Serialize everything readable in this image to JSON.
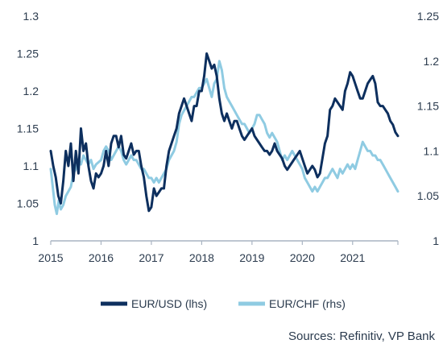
{
  "chart_data": {
    "type": "line",
    "title": "",
    "xlabel": "",
    "ylabel": "",
    "x_ticks": [
      "2015",
      "2016",
      "2017",
      "2018",
      "2019",
      "2020",
      "2021"
    ],
    "x_range": [
      2015.0,
      2021.9
    ],
    "y_left_ticks": [
      "1",
      "1.05",
      "1.1",
      "1.15",
      "1.2",
      "1.25",
      "1.3"
    ],
    "y_left_range": [
      1.0,
      1.3
    ],
    "y_right_ticks": [
      "1",
      "1.05",
      "1.1",
      "1.15",
      "1.2",
      "1.25"
    ],
    "y_right_range": [
      1.0,
      1.25
    ],
    "grid": false,
    "legend_position": "bottom-center",
    "source": "Sources: Refinitiv, VP Bank",
    "series": [
      {
        "name": "EUR/USD (lhs)",
        "axis": "left",
        "color": "#0d2f5e",
        "points": [
          [
            2015.0,
            1.12
          ],
          [
            2015.05,
            1.1
          ],
          [
            2015.1,
            1.085
          ],
          [
            2015.15,
            1.06
          ],
          [
            2015.2,
            1.05
          ],
          [
            2015.25,
            1.08
          ],
          [
            2015.3,
            1.12
          ],
          [
            2015.35,
            1.1
          ],
          [
            2015.4,
            1.13
          ],
          [
            2015.45,
            1.08
          ],
          [
            2015.5,
            1.12
          ],
          [
            2015.55,
            1.09
          ],
          [
            2015.6,
            1.15
          ],
          [
            2015.65,
            1.12
          ],
          [
            2015.7,
            1.13
          ],
          [
            2015.75,
            1.1
          ],
          [
            2015.8,
            1.08
          ],
          [
            2015.85,
            1.07
          ],
          [
            2015.9,
            1.09
          ],
          [
            2015.95,
            1.085
          ],
          [
            2016.0,
            1.09
          ],
          [
            2016.05,
            1.1
          ],
          [
            2016.1,
            1.12
          ],
          [
            2016.15,
            1.1
          ],
          [
            2016.2,
            1.13
          ],
          [
            2016.25,
            1.14
          ],
          [
            2016.3,
            1.14
          ],
          [
            2016.35,
            1.125
          ],
          [
            2016.4,
            1.14
          ],
          [
            2016.45,
            1.115
          ],
          [
            2016.5,
            1.11
          ],
          [
            2016.55,
            1.12
          ],
          [
            2016.6,
            1.13
          ],
          [
            2016.65,
            1.115
          ],
          [
            2016.7,
            1.12
          ],
          [
            2016.75,
            1.12
          ],
          [
            2016.8,
            1.1
          ],
          [
            2016.85,
            1.085
          ],
          [
            2016.9,
            1.06
          ],
          [
            2016.95,
            1.04
          ],
          [
            2017.0,
            1.045
          ],
          [
            2017.05,
            1.07
          ],
          [
            2017.1,
            1.06
          ],
          [
            2017.15,
            1.065
          ],
          [
            2017.2,
            1.07
          ],
          [
            2017.25,
            1.07
          ],
          [
            2017.3,
            1.1
          ],
          [
            2017.35,
            1.12
          ],
          [
            2017.4,
            1.13
          ],
          [
            2017.45,
            1.14
          ],
          [
            2017.5,
            1.15
          ],
          [
            2017.55,
            1.17
          ],
          [
            2017.6,
            1.18
          ],
          [
            2017.65,
            1.19
          ],
          [
            2017.7,
            1.18
          ],
          [
            2017.75,
            1.17
          ],
          [
            2017.8,
            1.16
          ],
          [
            2017.85,
            1.18
          ],
          [
            2017.9,
            1.18
          ],
          [
            2017.95,
            1.2
          ],
          [
            2018.0,
            1.2
          ],
          [
            2018.05,
            1.22
          ],
          [
            2018.1,
            1.25
          ],
          [
            2018.15,
            1.24
          ],
          [
            2018.2,
            1.23
          ],
          [
            2018.25,
            1.235
          ],
          [
            2018.3,
            1.22
          ],
          [
            2018.35,
            1.19
          ],
          [
            2018.4,
            1.17
          ],
          [
            2018.45,
            1.16
          ],
          [
            2018.5,
            1.17
          ],
          [
            2018.55,
            1.16
          ],
          [
            2018.6,
            1.15
          ],
          [
            2018.65,
            1.16
          ],
          [
            2018.7,
            1.16
          ],
          [
            2018.75,
            1.15
          ],
          [
            2018.8,
            1.14
          ],
          [
            2018.85,
            1.135
          ],
          [
            2018.9,
            1.14
          ],
          [
            2018.95,
            1.145
          ],
          [
            2019.0,
            1.15
          ],
          [
            2019.05,
            1.14
          ],
          [
            2019.1,
            1.135
          ],
          [
            2019.15,
            1.13
          ],
          [
            2019.2,
            1.125
          ],
          [
            2019.25,
            1.12
          ],
          [
            2019.3,
            1.12
          ],
          [
            2019.35,
            1.115
          ],
          [
            2019.4,
            1.12
          ],
          [
            2019.45,
            1.13
          ],
          [
            2019.5,
            1.12
          ],
          [
            2019.55,
            1.115
          ],
          [
            2019.6,
            1.11
          ],
          [
            2019.65,
            1.1
          ],
          [
            2019.7,
            1.095
          ],
          [
            2019.75,
            1.1
          ],
          [
            2019.8,
            1.105
          ],
          [
            2019.85,
            1.11
          ],
          [
            2019.9,
            1.115
          ],
          [
            2019.95,
            1.12
          ],
          [
            2020.0,
            1.11
          ],
          [
            2020.05,
            1.1
          ],
          [
            2020.1,
            1.09
          ],
          [
            2020.15,
            1.095
          ],
          [
            2020.2,
            1.1
          ],
          [
            2020.25,
            1.095
          ],
          [
            2020.3,
            1.085
          ],
          [
            2020.35,
            1.09
          ],
          [
            2020.4,
            1.11
          ],
          [
            2020.45,
            1.13
          ],
          [
            2020.5,
            1.14
          ],
          [
            2020.55,
            1.175
          ],
          [
            2020.6,
            1.18
          ],
          [
            2020.65,
            1.19
          ],
          [
            2020.7,
            1.185
          ],
          [
            2020.75,
            1.18
          ],
          [
            2020.8,
            1.175
          ],
          [
            2020.85,
            1.2
          ],
          [
            2020.9,
            1.21
          ],
          [
            2020.95,
            1.225
          ],
          [
            2021.0,
            1.22
          ],
          [
            2021.05,
            1.21
          ],
          [
            2021.1,
            1.2
          ],
          [
            2021.15,
            1.19
          ],
          [
            2021.2,
            1.19
          ],
          [
            2021.25,
            1.2
          ],
          [
            2021.3,
            1.21
          ],
          [
            2021.35,
            1.215
          ],
          [
            2021.4,
            1.22
          ],
          [
            2021.45,
            1.21
          ],
          [
            2021.5,
            1.185
          ],
          [
            2021.55,
            1.18
          ],
          [
            2021.6,
            1.18
          ],
          [
            2021.65,
            1.175
          ],
          [
            2021.7,
            1.17
          ],
          [
            2021.75,
            1.16
          ],
          [
            2021.8,
            1.155
          ],
          [
            2021.85,
            1.145
          ],
          [
            2021.9,
            1.14
          ]
        ]
      },
      {
        "name": "EUR/CHF (rhs)",
        "axis": "right",
        "color": "#8fcbe2",
        "points": [
          [
            2015.0,
            1.08
          ],
          [
            2015.04,
            1.06
          ],
          [
            2015.08,
            1.04
          ],
          [
            2015.12,
            1.03
          ],
          [
            2015.16,
            1.045
          ],
          [
            2015.2,
            1.035
          ],
          [
            2015.25,
            1.04
          ],
          [
            2015.3,
            1.05
          ],
          [
            2015.35,
            1.055
          ],
          [
            2015.4,
            1.06
          ],
          [
            2015.45,
            1.075
          ],
          [
            2015.5,
            1.08
          ],
          [
            2015.55,
            1.09
          ],
          [
            2015.6,
            1.085
          ],
          [
            2015.65,
            1.095
          ],
          [
            2015.7,
            1.09
          ],
          [
            2015.75,
            1.085
          ],
          [
            2015.8,
            1.09
          ],
          [
            2015.85,
            1.08
          ],
          [
            2015.9,
            1.085
          ],
          [
            2016.0,
            1.09
          ],
          [
            2016.05,
            1.1
          ],
          [
            2016.1,
            1.105
          ],
          [
            2016.15,
            1.1
          ],
          [
            2016.2,
            1.09
          ],
          [
            2016.25,
            1.095
          ],
          [
            2016.3,
            1.1
          ],
          [
            2016.35,
            1.105
          ],
          [
            2016.4,
            1.1
          ],
          [
            2016.45,
            1.09
          ],
          [
            2016.5,
            1.085
          ],
          [
            2016.55,
            1.09
          ],
          [
            2016.6,
            1.095
          ],
          [
            2016.65,
            1.09
          ],
          [
            2016.7,
            1.09
          ],
          [
            2016.75,
            1.085
          ],
          [
            2016.8,
            1.08
          ],
          [
            2016.85,
            1.08
          ],
          [
            2016.9,
            1.075
          ],
          [
            2016.95,
            1.07
          ],
          [
            2017.0,
            1.07
          ],
          [
            2017.05,
            1.065
          ],
          [
            2017.1,
            1.07
          ],
          [
            2017.15,
            1.065
          ],
          [
            2017.2,
            1.07
          ],
          [
            2017.25,
            1.075
          ],
          [
            2017.3,
            1.08
          ],
          [
            2017.35,
            1.09
          ],
          [
            2017.4,
            1.095
          ],
          [
            2017.45,
            1.1
          ],
          [
            2017.5,
            1.11
          ],
          [
            2017.55,
            1.13
          ],
          [
            2017.6,
            1.14
          ],
          [
            2017.65,
            1.145
          ],
          [
            2017.7,
            1.15
          ],
          [
            2017.75,
            1.155
          ],
          [
            2017.8,
            1.16
          ],
          [
            2017.85,
            1.16
          ],
          [
            2017.9,
            1.165
          ],
          [
            2017.95,
            1.17
          ],
          [
            2018.0,
            1.17
          ],
          [
            2018.05,
            1.175
          ],
          [
            2018.1,
            1.18
          ],
          [
            2018.15,
            1.17
          ],
          [
            2018.2,
            1.16
          ],
          [
            2018.25,
            1.175
          ],
          [
            2018.3,
            1.18
          ],
          [
            2018.35,
            1.2
          ],
          [
            2018.4,
            1.19
          ],
          [
            2018.45,
            1.17
          ],
          [
            2018.5,
            1.16
          ],
          [
            2018.55,
            1.155
          ],
          [
            2018.6,
            1.15
          ],
          [
            2018.65,
            1.145
          ],
          [
            2018.7,
            1.14
          ],
          [
            2018.75,
            1.135
          ],
          [
            2018.8,
            1.13
          ],
          [
            2018.85,
            1.13
          ],
          [
            2018.9,
            1.125
          ],
          [
            2018.95,
            1.12
          ],
          [
            2019.0,
            1.125
          ],
          [
            2019.05,
            1.13
          ],
          [
            2019.1,
            1.14
          ],
          [
            2019.15,
            1.14
          ],
          [
            2019.2,
            1.135
          ],
          [
            2019.25,
            1.13
          ],
          [
            2019.3,
            1.12
          ],
          [
            2019.35,
            1.115
          ],
          [
            2019.4,
            1.12
          ],
          [
            2019.45,
            1.115
          ],
          [
            2019.5,
            1.11
          ],
          [
            2019.55,
            1.1
          ],
          [
            2019.6,
            1.09
          ],
          [
            2019.65,
            1.095
          ],
          [
            2019.7,
            1.09
          ],
          [
            2019.75,
            1.095
          ],
          [
            2019.8,
            1.1
          ],
          [
            2019.85,
            1.095
          ],
          [
            2019.9,
            1.09
          ],
          [
            2019.95,
            1.085
          ],
          [
            2020.0,
            1.08
          ],
          [
            2020.05,
            1.07
          ],
          [
            2020.1,
            1.065
          ],
          [
            2020.15,
            1.06
          ],
          [
            2020.2,
            1.055
          ],
          [
            2020.25,
            1.06
          ],
          [
            2020.3,
            1.055
          ],
          [
            2020.35,
            1.06
          ],
          [
            2020.4,
            1.065
          ],
          [
            2020.45,
            1.07
          ],
          [
            2020.5,
            1.07
          ],
          [
            2020.55,
            1.075
          ],
          [
            2020.6,
            1.08
          ],
          [
            2020.65,
            1.075
          ],
          [
            2020.7,
            1.07
          ],
          [
            2020.75,
            1.08
          ],
          [
            2020.8,
            1.075
          ],
          [
            2020.85,
            1.08
          ],
          [
            2020.9,
            1.085
          ],
          [
            2020.95,
            1.08
          ],
          [
            2021.0,
            1.085
          ],
          [
            2021.05,
            1.08
          ],
          [
            2021.1,
            1.09
          ],
          [
            2021.15,
            1.1
          ],
          [
            2021.2,
            1.11
          ],
          [
            2021.25,
            1.105
          ],
          [
            2021.3,
            1.1
          ],
          [
            2021.35,
            1.1
          ],
          [
            2021.4,
            1.095
          ],
          [
            2021.45,
            1.095
          ],
          [
            2021.5,
            1.09
          ],
          [
            2021.55,
            1.09
          ],
          [
            2021.6,
            1.085
          ],
          [
            2021.65,
            1.08
          ],
          [
            2021.7,
            1.075
          ],
          [
            2021.75,
            1.07
          ],
          [
            2021.8,
            1.065
          ],
          [
            2021.85,
            1.06
          ],
          [
            2021.9,
            1.055
          ]
        ]
      }
    ]
  }
}
